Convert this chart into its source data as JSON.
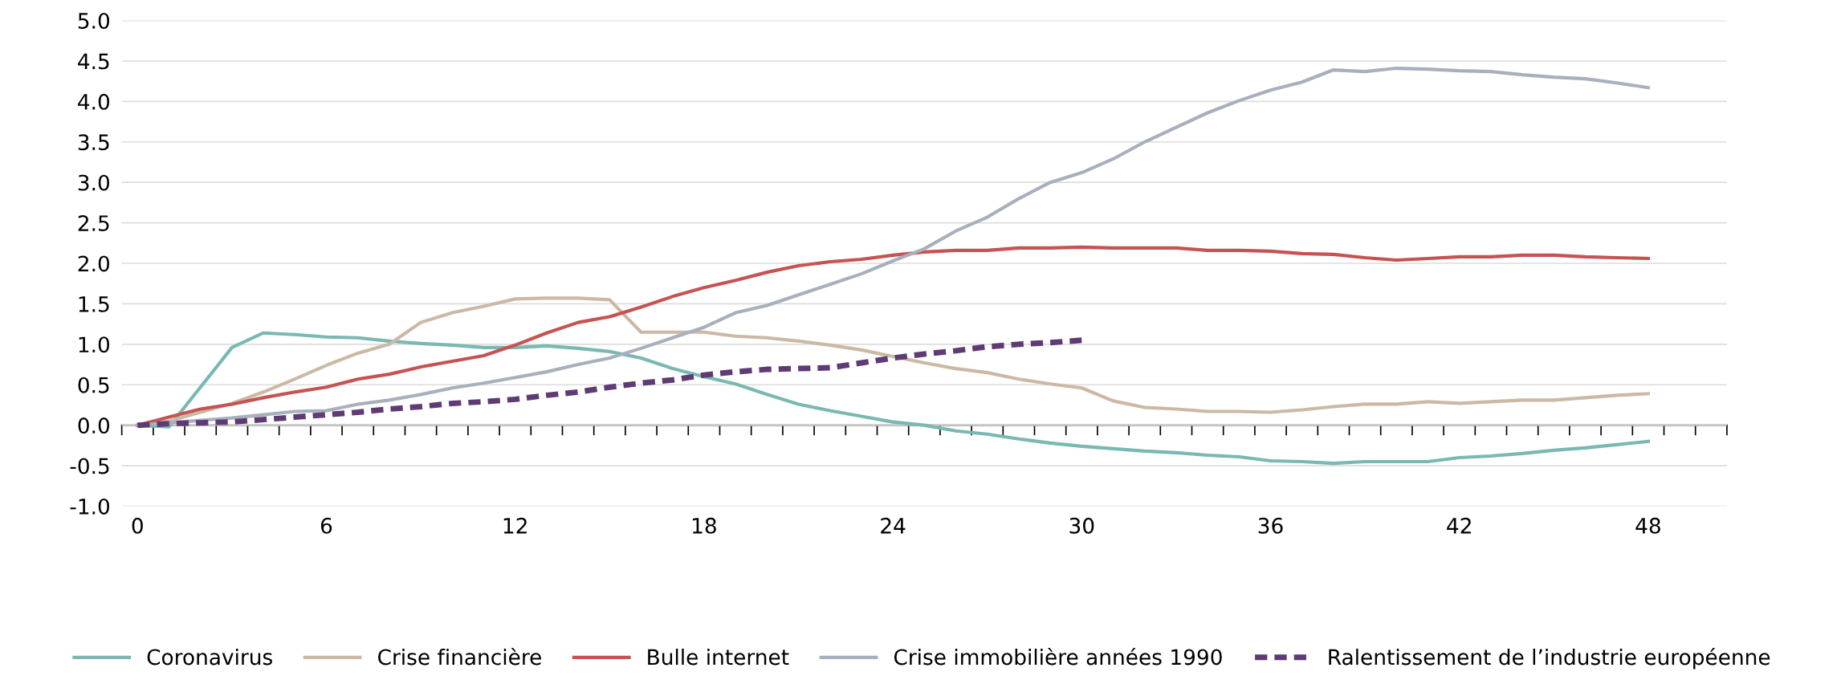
{
  "chart_data": {
    "type": "line",
    "x": [
      0,
      1,
      2,
      3,
      4,
      5,
      6,
      7,
      8,
      9,
      10,
      11,
      12,
      13,
      14,
      15,
      16,
      17,
      18,
      19,
      20,
      21,
      22,
      23,
      24,
      25,
      26,
      27,
      28,
      29,
      30,
      31,
      32,
      33,
      34,
      35,
      36,
      37,
      38,
      39,
      40,
      41,
      42,
      43,
      44,
      45,
      46,
      47,
      48
    ],
    "series": [
      {
        "name": "Coronavirus",
        "color": "#7ab8b2",
        "values": [
          0,
          -0.02,
          0.47,
          0.96,
          1.14,
          1.12,
          1.09,
          1.08,
          1.04,
          1.01,
          0.99,
          0.96,
          0.96,
          0.98,
          0.95,
          0.91,
          0.83,
          0.7,
          0.6,
          0.51,
          0.38,
          0.26,
          0.18,
          0.11,
          0.04,
          0.0,
          -0.07,
          -0.11,
          -0.17,
          -0.22,
          -0.26,
          -0.29,
          -0.32,
          -0.34,
          -0.37,
          -0.39,
          -0.44,
          -0.45,
          -0.47,
          -0.45,
          -0.45,
          -0.45,
          -0.4,
          -0.38,
          -0.35,
          -0.31,
          -0.28,
          -0.24,
          -0.2
        ]
      },
      {
        "name": "Crise financière",
        "color": "#cbb9a5",
        "values": [
          0,
          0.05,
          0.16,
          0.27,
          0.41,
          0.57,
          0.74,
          0.89,
          1.0,
          1.27,
          1.39,
          1.47,
          1.56,
          1.57,
          1.57,
          1.55,
          1.15,
          1.15,
          1.15,
          1.1,
          1.08,
          1.04,
          0.99,
          0.93,
          0.85,
          0.77,
          0.7,
          0.65,
          0.57,
          0.51,
          0.46,
          0.3,
          0.22,
          0.2,
          0.17,
          0.17,
          0.16,
          0.19,
          0.23,
          0.26,
          0.26,
          0.29,
          0.27,
          0.29,
          0.31,
          0.31,
          0.34,
          0.37,
          0.39
        ]
      },
      {
        "name": "Bulle internet",
        "color": "#c65353",
        "values": [
          0,
          0.1,
          0.2,
          0.26,
          0.34,
          0.41,
          0.47,
          0.57,
          0.63,
          0.72,
          0.79,
          0.86,
          0.99,
          1.14,
          1.27,
          1.34,
          1.46,
          1.59,
          1.7,
          1.79,
          1.89,
          1.97,
          2.02,
          2.05,
          2.1,
          2.14,
          2.16,
          2.16,
          2.19,
          2.19,
          2.2,
          2.19,
          2.19,
          2.19,
          2.16,
          2.16,
          2.15,
          2.12,
          2.11,
          2.07,
          2.04,
          2.06,
          2.08,
          2.08,
          2.1,
          2.1,
          2.08,
          2.07,
          2.06
        ]
      },
      {
        "name": "Crise immobilière années 1990",
        "color": "#a8afbd",
        "values": [
          0,
          0.03,
          0.06,
          0.09,
          0.13,
          0.17,
          0.18,
          0.26,
          0.31,
          0.38,
          0.46,
          0.52,
          0.59,
          0.66,
          0.75,
          0.83,
          0.95,
          1.08,
          1.21,
          1.39,
          1.48,
          1.61,
          1.74,
          1.87,
          2.03,
          2.18,
          2.4,
          2.57,
          2.8,
          3.0,
          3.12,
          3.29,
          3.5,
          3.68,
          3.86,
          4.01,
          4.14,
          4.24,
          4.39,
          4.37,
          4.41,
          4.4,
          4.38,
          4.37,
          4.33,
          4.3,
          4.28,
          4.23,
          4.17
        ]
      },
      {
        "name": "Ralentissement de l’industrie européenne",
        "color": "#5e3b74",
        "line_style": "dashed",
        "x": [
          0,
          1,
          2,
          3,
          4,
          5,
          6,
          7,
          8,
          9,
          10,
          11,
          12,
          13,
          14,
          15,
          16,
          17,
          18,
          19,
          20,
          21,
          22,
          23,
          24,
          25,
          26,
          27,
          28,
          29,
          30
        ],
        "values": [
          0,
          0.02,
          0.03,
          0.04,
          0.07,
          0.1,
          0.13,
          0.16,
          0.2,
          0.23,
          0.27,
          0.29,
          0.32,
          0.37,
          0.41,
          0.47,
          0.52,
          0.56,
          0.62,
          0.66,
          0.69,
          0.7,
          0.71,
          0.77,
          0.83,
          0.88,
          0.92,
          0.97,
          1.0,
          1.02,
          1.05
        ]
      }
    ],
    "xlim": [
      -0.5,
      50.5
    ],
    "xticks": [
      {
        "value": 0,
        "label": "0"
      },
      {
        "value": 6,
        "label": "6"
      },
      {
        "value": 12,
        "label": "12"
      },
      {
        "value": 18,
        "label": "18"
      },
      {
        "value": 24,
        "label": "24"
      },
      {
        "value": 30,
        "label": "30"
      },
      {
        "value": 36,
        "label": "36"
      },
      {
        "value": 42,
        "label": "42"
      },
      {
        "value": 48,
        "label": "48"
      },
      {
        "value": -0.5,
        "label": null
      },
      {
        "value": 0.5,
        "label": null
      },
      {
        "value": 1.5,
        "label": null
      },
      {
        "value": 2.5,
        "label": null
      },
      {
        "value": 3.5,
        "label": null
      },
      {
        "value": 4.5,
        "label": null
      },
      {
        "value": 5.5,
        "label": null
      },
      {
        "value": 6.5,
        "label": null
      },
      {
        "value": 7.5,
        "label": null
      },
      {
        "value": 8.5,
        "label": null
      },
      {
        "value": 9.5,
        "label": null
      },
      {
        "value": 10.5,
        "label": null
      },
      {
        "value": 11.5,
        "label": null
      },
      {
        "value": 12.5,
        "label": null
      },
      {
        "value": 13.5,
        "label": null
      },
      {
        "value": 14.5,
        "label": null
      },
      {
        "value": 15.5,
        "label": null
      },
      {
        "value": 16.5,
        "label": null
      },
      {
        "value": 17.5,
        "label": null
      },
      {
        "value": 18.5,
        "label": null
      },
      {
        "value": 19.5,
        "label": null
      },
      {
        "value": 20.5,
        "label": null
      },
      {
        "value": 21.5,
        "label": null
      },
      {
        "value": 22.5,
        "label": null
      },
      {
        "value": 23.5,
        "label": null
      },
      {
        "value": 24.5,
        "label": null
      },
      {
        "value": 25.5,
        "label": null
      },
      {
        "value": 26.5,
        "label": null
      },
      {
        "value": 27.5,
        "label": null
      },
      {
        "value": 28.5,
        "label": null
      },
      {
        "value": 29.5,
        "label": null
      },
      {
        "value": 30.5,
        "label": null
      },
      {
        "value": 31.5,
        "label": null
      },
      {
        "value": 32.5,
        "label": null
      },
      {
        "value": 33.5,
        "label": null
      },
      {
        "value": 34.5,
        "label": null
      },
      {
        "value": 35.5,
        "label": null
      },
      {
        "value": 36.5,
        "label": null
      },
      {
        "value": 37.5,
        "label": null
      },
      {
        "value": 38.5,
        "label": null
      },
      {
        "value": 39.5,
        "label": null
      },
      {
        "value": 40.5,
        "label": null
      },
      {
        "value": 41.5,
        "label": null
      },
      {
        "value": 42.5,
        "label": null
      },
      {
        "value": 43.5,
        "label": null
      },
      {
        "value": 44.5,
        "label": null
      },
      {
        "value": 45.5,
        "label": null
      },
      {
        "value": 46.5,
        "label": null
      },
      {
        "value": 47.5,
        "label": null
      },
      {
        "value": 48.5,
        "label": null
      },
      {
        "value": 49.5,
        "label": null
      },
      {
        "value": 50.5,
        "label": null
      }
    ],
    "ylim": [
      -1.0,
      5.0
    ],
    "yticks": [
      {
        "value": -1.0,
        "label": "-1.0"
      },
      {
        "value": -0.5,
        "label": "-0.5"
      },
      {
        "value": 0.0,
        "label": "0.0"
      },
      {
        "value": 0.5,
        "label": "0.5"
      },
      {
        "value": 1.0,
        "label": "1.0"
      },
      {
        "value": 1.5,
        "label": "1.5"
      },
      {
        "value": 2.0,
        "label": "2.0"
      },
      {
        "value": 2.5,
        "label": "2.5"
      },
      {
        "value": 3.0,
        "label": "3.0"
      },
      {
        "value": 3.5,
        "label": "3.5"
      },
      {
        "value": 4.0,
        "label": "4.0"
      },
      {
        "value": 4.5,
        "label": "4.5"
      },
      {
        "value": 5.0,
        "label": "5.0"
      }
    ],
    "grid": "y",
    "legend": "bottom",
    "line_style": "solid",
    "marker": "none"
  }
}
